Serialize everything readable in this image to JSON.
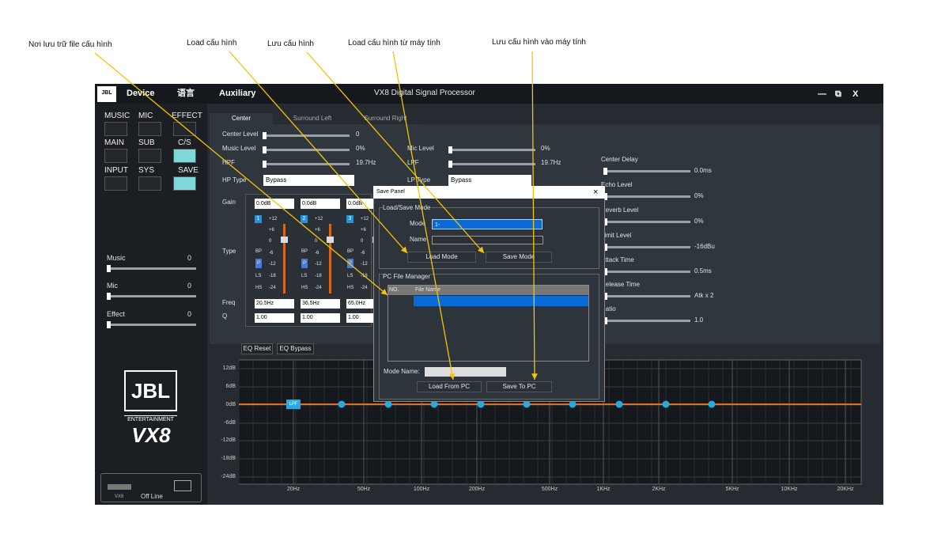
{
  "annotations": [
    "Nơi lưu trữ file cấu hình",
    "Load cấu hình",
    "Lưu cấu hình",
    "Load cấu hình từ máy tính",
    "Lưu cấu hình vào máy tính"
  ],
  "titlebar": {
    "logo": "JBL",
    "menu": [
      "Device",
      "语言",
      "Auxiliary"
    ],
    "title": "VX8  Digital Signal Processor",
    "controls": [
      "—",
      "⧉",
      "X"
    ]
  },
  "sidebar": {
    "buttons": [
      "MUSIC",
      "MIC",
      "EFFECT",
      "MAIN",
      "SUB",
      "C/S",
      "INPUT",
      "SYS",
      "SAVE"
    ],
    "levels": [
      {
        "label": "Music",
        "value": 0
      },
      {
        "label": "Mic",
        "value": 0
      },
      {
        "label": "Effect",
        "value": 0
      }
    ],
    "brand": {
      "logo": "JBL",
      "subtitle": "ENTERTAINMENT",
      "model": "VX8"
    },
    "status": {
      "device": "VX8",
      "state": "Off Line"
    }
  },
  "tabs": [
    "Center",
    "Surround Left",
    "Surround Right"
  ],
  "center": {
    "left": [
      {
        "label": "Center Level",
        "value": 0
      },
      {
        "label": "Music Level",
        "value": "0%"
      },
      {
        "label": "HPF",
        "value": "19.7Hz"
      },
      {
        "label": "HP Type",
        "value": "Bypass"
      }
    ],
    "middle": [
      {
        "label": "Mic Level",
        "value": "0%"
      },
      {
        "label": "LPF",
        "value": "19.7Hz"
      },
      {
        "label": "LP Type",
        "value": "Bypass"
      }
    ],
    "right": [
      {
        "label": "Center Delay",
        "value": "0.0ms"
      },
      {
        "label": "Echo Level",
        "value": "0%"
      },
      {
        "label": "Reverb Level",
        "value": "0%"
      },
      {
        "label": "Limit Level",
        "value": "-16dBu"
      },
      {
        "label": "Attack Time",
        "value": "0.5ms"
      },
      {
        "label": "Release Time",
        "value": "Atk x 2"
      },
      {
        "label": "Ratio",
        "value": "1.0"
      }
    ]
  },
  "eq": {
    "row_labels": [
      "Gain",
      "Type",
      "Freq",
      "Q"
    ],
    "bands": [
      {
        "number": 1,
        "gain": "0.0dB",
        "freq": "20.5Hz",
        "q": "1.00"
      },
      {
        "number": 2,
        "gain": "0.0dB",
        "freq": "36.5Hz",
        "q": "1.00"
      },
      {
        "number": 3,
        "gain": "0.0dB",
        "freq": "65.0Hz",
        "q": "1.00"
      }
    ],
    "scale": [
      "+12",
      "+6",
      "0",
      "-6",
      "-12",
      "-18",
      "-24"
    ],
    "types": [
      "BP",
      "P",
      "LS",
      "HS"
    ],
    "buttons": [
      "EQ Reset",
      "EQ Bypass"
    ]
  },
  "graph": {
    "yticks": [
      "12dB",
      "6dB",
      "0dB",
      "-6dB",
      "-12dB",
      "-18dB",
      "-24dB"
    ],
    "xticks": [
      "20Hz",
      "50Hz",
      "100Hz",
      "200Hz",
      "500Hz",
      "1KHz",
      "2KHz",
      "5KHz",
      "10KHz",
      "20KHz"
    ],
    "filter_label": "LPF"
  },
  "dialog": {
    "title": "Save Panel",
    "close": "×",
    "load_save": {
      "title": "Load/Save Mode",
      "mode_label": "Mode",
      "mode_value": "1-",
      "name_label": "Name",
      "buttons": [
        "Load Mode",
        "Save Mode"
      ]
    },
    "pc": {
      "title": "PC File Manager",
      "columns": [
        "NO.",
        "File Name"
      ],
      "mode_name_label": "Mode Name:",
      "buttons": [
        "Load From PC",
        "Save To PC"
      ]
    }
  }
}
